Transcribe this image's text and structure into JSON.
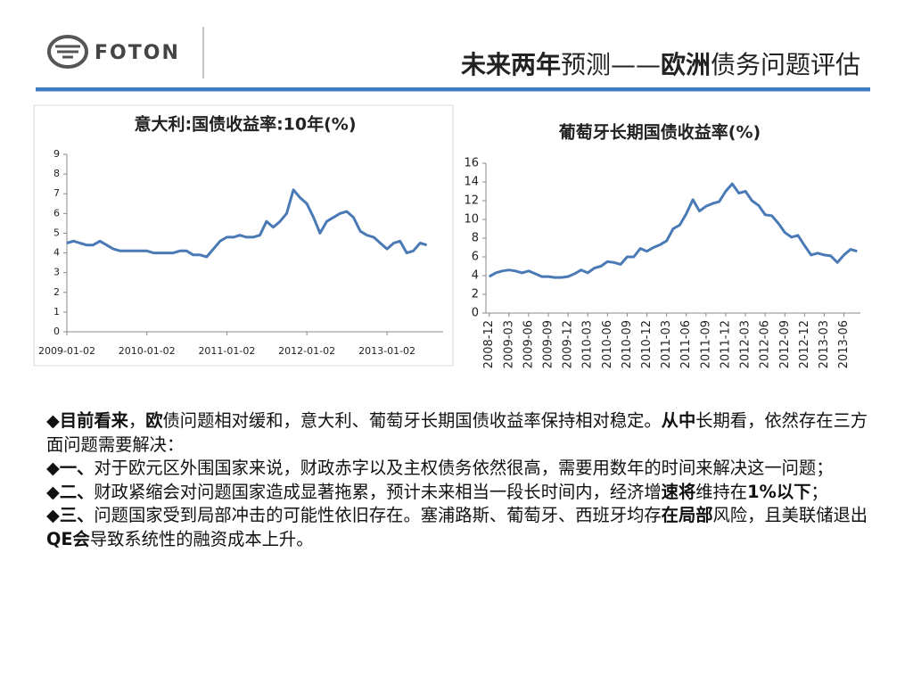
{
  "header": {
    "logo": "FOTON",
    "title": [
      {
        "text": "未来两年",
        "bold": true
      },
      {
        "text": "预测——",
        "bold": false
      },
      {
        "text": "欧洲",
        "bold": true
      },
      {
        "text": "债务问题评估",
        "bold": false
      }
    ]
  },
  "chart_data": [
    {
      "type": "line",
      "title": "意大利:国债收益率:10年(%)",
      "color": "#4a7ab5",
      "x": [
        "2009-01-02",
        "2009-02-02",
        "2009-03-02",
        "2009-04-02",
        "2009-05-02",
        "2009-06-02",
        "2009-07-02",
        "2009-08-02",
        "2009-09-02",
        "2009-10-02",
        "2009-11-02",
        "2009-12-02",
        "2010-01-02",
        "2010-02-02",
        "2010-03-02",
        "2010-04-02",
        "2010-05-02",
        "2010-06-02",
        "2010-07-02",
        "2010-08-02",
        "2010-09-02",
        "2010-10-02",
        "2010-11-02",
        "2010-12-02",
        "2011-01-02",
        "2011-02-02",
        "2011-03-02",
        "2011-04-02",
        "2011-05-02",
        "2011-06-02",
        "2011-07-02",
        "2011-08-02",
        "2011-09-02",
        "2011-10-02",
        "2011-11-02",
        "2011-12-02",
        "2012-01-02",
        "2012-02-02",
        "2012-03-02",
        "2012-04-02",
        "2012-05-02",
        "2012-06-02",
        "2012-07-02",
        "2012-08-02",
        "2012-09-02",
        "2012-10-02",
        "2012-11-02",
        "2012-12-02",
        "2013-01-02",
        "2013-02-02",
        "2013-03-02",
        "2013-04-02",
        "2013-05-02",
        "2013-06-02",
        "2013-07-02"
      ],
      "values": [
        4.5,
        4.6,
        4.5,
        4.4,
        4.4,
        4.6,
        4.4,
        4.2,
        4.1,
        4.1,
        4.1,
        4.1,
        4.1,
        4.0,
        4.0,
        4.0,
        4.0,
        4.1,
        4.1,
        3.9,
        3.9,
        3.8,
        4.2,
        4.6,
        4.8,
        4.8,
        4.9,
        4.8,
        4.8,
        4.9,
        5.6,
        5.3,
        5.6,
        6.0,
        7.2,
        6.8,
        6.5,
        5.8,
        5.0,
        5.6,
        5.8,
        6.0,
        6.1,
        5.8,
        5.1,
        4.9,
        4.8,
        4.5,
        4.2,
        4.5,
        4.6,
        4.0,
        4.1,
        4.5,
        4.4
      ],
      "xlim": [
        "2009-01-02",
        "2013-09-15"
      ],
      "xticks": [
        "2009-01-02",
        "2010-01-02",
        "2011-01-02",
        "2012-01-02",
        "2013-01-02"
      ],
      "ylim": [
        0,
        9
      ],
      "yticks": [
        0,
        1,
        2,
        3,
        4,
        5,
        6,
        7,
        8,
        9
      ]
    },
    {
      "type": "line",
      "title": "葡萄牙长期国债收益率(%)",
      "color": "#4a7ab5",
      "categories": [
        "2008-12",
        null,
        null,
        "2009-03",
        null,
        null,
        "2009-06",
        null,
        null,
        "2009-09",
        null,
        null,
        "2009-12",
        null,
        null,
        "2010-03",
        null,
        null,
        "2010-06",
        null,
        null,
        "2010-09",
        null,
        null,
        "2010-12",
        null,
        null,
        "2011-03",
        null,
        null,
        "2011-06",
        null,
        null,
        "2011-09",
        null,
        null,
        "2011-12",
        null,
        null,
        "2012-03",
        null,
        null,
        "2012-06",
        null,
        null,
        "2012-09",
        null,
        null,
        "2012-12",
        null,
        null,
        "2013-03",
        null,
        null,
        "2013-06",
        null,
        null
      ],
      "values": [
        3.9,
        4.3,
        4.5,
        4.6,
        4.5,
        4.3,
        4.5,
        4.2,
        3.9,
        3.9,
        3.8,
        3.8,
        3.9,
        4.2,
        4.6,
        4.3,
        4.8,
        5.0,
        5.5,
        5.4,
        5.2,
        6.0,
        6.0,
        6.9,
        6.6,
        7.0,
        7.3,
        7.7,
        9.0,
        9.4,
        10.6,
        12.1,
        10.9,
        11.4,
        11.7,
        11.9,
        13.0,
        13.8,
        12.8,
        13.0,
        12.0,
        11.5,
        10.5,
        10.4,
        9.6,
        8.6,
        8.1,
        8.3,
        7.2,
        6.2,
        6.4,
        6.2,
        6.1,
        5.4,
        6.2,
        6.8,
        6.6
      ],
      "ylim": [
        0,
        16
      ],
      "yticks": [
        0,
        2,
        4,
        6,
        8,
        10,
        12,
        14,
        16
      ]
    }
  ],
  "paragraphs": [
    [
      {
        "text": "◆目前看来",
        "bold": true
      },
      {
        "text": "，",
        "bold": false
      },
      {
        "text": "欧",
        "bold": true
      },
      {
        "text": "债问题相对缓和，意大利、葡萄牙长期国债收益率保持相对稳定。",
        "bold": false
      },
      {
        "text": "从中",
        "bold": true
      },
      {
        "text": "长期看，依然存在三方面问题需要解决：",
        "bold": false
      }
    ],
    [
      {
        "text": "◆一、",
        "bold": true
      },
      {
        "text": "对于欧元区外围国家来说，财政赤字以及主权债务依然很高，需要用数年的时间来解决这一问题；",
        "bold": false
      }
    ],
    [
      {
        "text": "◆二、",
        "bold": true
      },
      {
        "text": "财政紧缩会对问题国家造成显著拖累，预计未来相当一段长时间内，经济增",
        "bold": false
      },
      {
        "text": "速将",
        "bold": true
      },
      {
        "text": "维持在",
        "bold": false
      },
      {
        "text": "1%以下",
        "bold": true
      },
      {
        "text": "；",
        "bold": false
      }
    ],
    [
      {
        "text": "◆三、",
        "bold": true
      },
      {
        "text": "问题国家受到局部冲击的可能性依旧存在。塞浦路斯、葡萄牙、西班牙均存",
        "bold": false
      },
      {
        "text": "在局部",
        "bold": true
      },
      {
        "text": "风险，且美联储退出",
        "bold": false
      },
      {
        "text": "QE会",
        "bold": true
      },
      {
        "text": "导致系统性的融资成本上升。",
        "bold": false
      }
    ]
  ]
}
